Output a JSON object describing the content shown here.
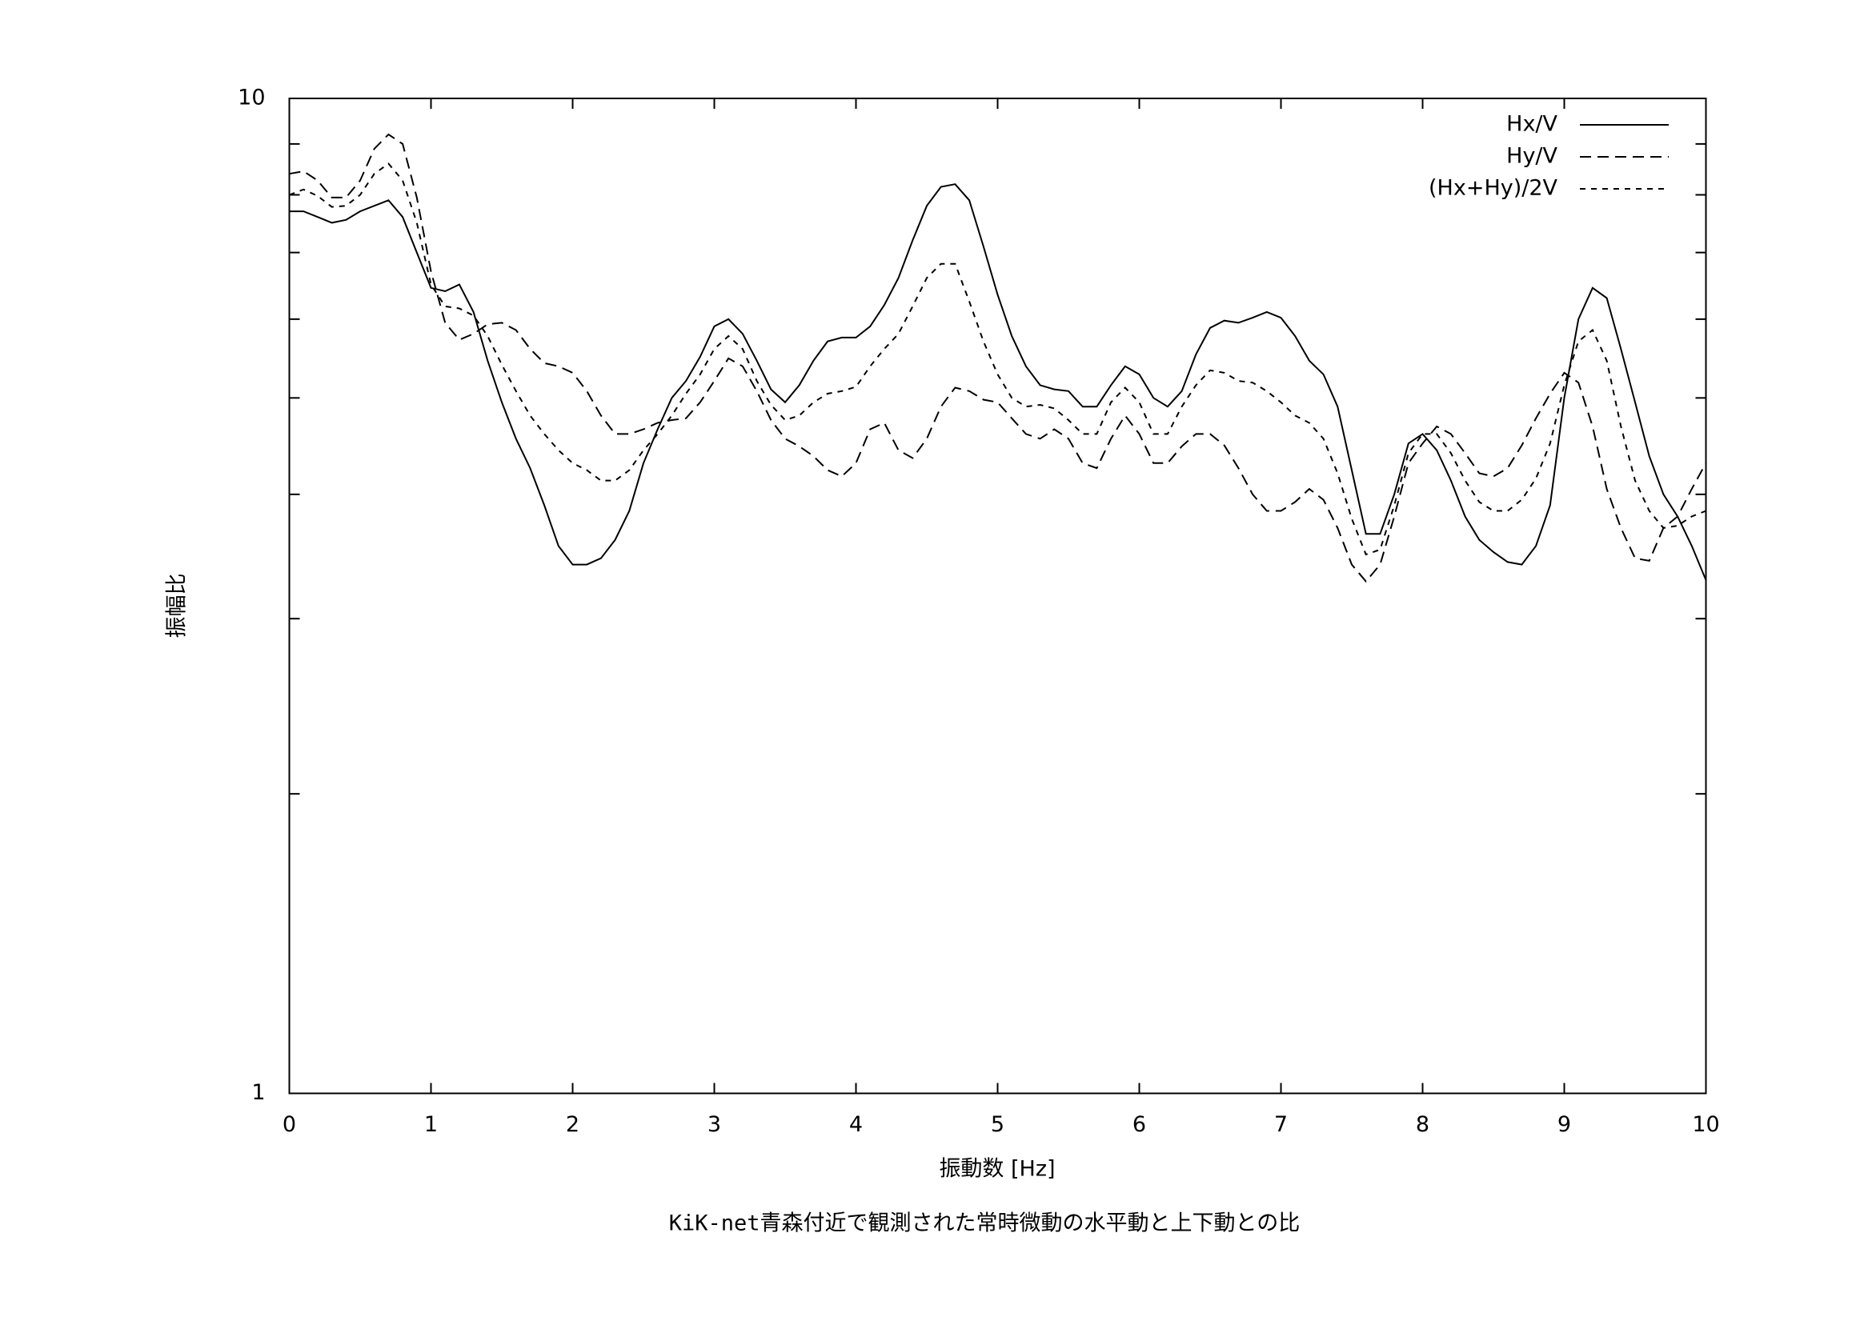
{
  "chart_data": {
    "type": "line",
    "title": "KiK-net青森付近で観測された常時微動の水平動と上下動との比",
    "xlabel": "振動数 [Hz]",
    "ylabel": "振幅比",
    "ylog": true,
    "xlim": [
      0,
      10
    ],
    "ylim": [
      1,
      10
    ],
    "xticks": [
      0,
      1,
      2,
      3,
      4,
      5,
      6,
      7,
      8,
      9,
      10
    ],
    "yticks": [
      1,
      10
    ],
    "yminorticks": [
      2,
      3,
      4,
      5,
      6,
      7,
      8,
      9
    ],
    "legend": "upper right",
    "x": [
      0,
      0.1,
      0.2,
      0.3,
      0.4,
      0.5,
      0.6,
      0.7,
      0.8,
      0.9,
      1,
      1.1,
      1.2,
      1.3,
      1.4,
      1.5,
      1.6,
      1.7,
      1.8,
      1.9,
      2,
      2.1,
      2.2,
      2.3,
      2.4,
      2.5,
      2.6,
      2.7,
      2.8,
      2.9,
      3,
      3.1,
      3.2,
      3.3,
      3.4,
      3.5,
      3.6,
      3.7,
      3.8,
      3.9,
      4,
      4.1,
      4.2,
      4.3,
      4.4,
      4.5,
      4.6,
      4.7,
      4.8,
      4.9,
      5,
      5.1,
      5.2,
      5.3,
      5.4,
      5.5,
      5.6,
      5.7,
      5.8,
      5.9,
      6,
      6.1,
      6.2,
      6.3,
      6.4,
      6.5,
      6.6,
      6.7,
      6.8,
      6.9,
      7,
      7.1,
      7.2,
      7.3,
      7.4,
      7.5,
      7.6,
      7.7,
      7.8,
      7.9,
      8,
      8.1,
      8.2,
      8.3,
      8.4,
      8.5,
      8.6,
      8.7,
      8.8,
      8.9,
      9,
      9.1,
      9.2,
      9.3,
      9.4,
      9.5,
      9.6,
      9.7,
      9.8,
      9.9,
      10
    ],
    "series": [
      {
        "name": "Hx/V",
        "color": "#000000",
        "dash": "solid",
        "values": [
          7.7,
          7.7,
          7.6,
          7.5,
          7.55,
          7.7,
          7.8,
          7.9,
          7.6,
          7.0,
          6.45,
          6.4,
          6.5,
          6.1,
          5.45,
          4.95,
          4.55,
          4.25,
          3.9,
          3.55,
          3.4,
          3.4,
          3.45,
          3.6,
          3.85,
          4.3,
          4.65,
          5.0,
          5.2,
          5.5,
          5.9,
          6.0,
          5.8,
          5.45,
          5.1,
          4.95,
          5.15,
          5.45,
          5.7,
          5.75,
          5.75,
          5.9,
          6.2,
          6.6,
          7.2,
          7.8,
          8.15,
          8.2,
          7.9,
          7.1,
          6.35,
          5.77,
          5.38,
          5.15,
          5.1,
          5.08,
          4.9,
          4.9,
          5.15,
          5.38,
          5.28,
          5.0,
          4.9,
          5.08,
          5.53,
          5.88,
          5.98,
          5.95,
          6.02,
          6.1,
          6.02,
          5.77,
          5.45,
          5.28,
          4.9,
          4.23,
          3.65,
          3.65,
          4.0,
          4.5,
          4.6,
          4.43,
          4.13,
          3.8,
          3.6,
          3.5,
          3.42,
          3.4,
          3.55,
          3.9,
          5.0,
          6.0,
          6.45,
          6.3,
          5.6,
          4.95,
          4.37,
          4.0,
          3.8,
          3.55,
          3.28
        ]
      },
      {
        "name": "Hy/V",
        "color": "#000000",
        "dash": "dashed",
        "values": [
          8.4,
          8.45,
          8.27,
          7.95,
          7.95,
          8.27,
          8.9,
          9.2,
          9.0,
          7.95,
          6.7,
          5.95,
          5.72,
          5.8,
          5.93,
          5.95,
          5.85,
          5.6,
          5.42,
          5.38,
          5.3,
          5.08,
          4.8,
          4.6,
          4.6,
          4.65,
          4.72,
          4.75,
          4.77,
          4.95,
          5.2,
          5.48,
          5.38,
          5.08,
          4.75,
          4.55,
          4.47,
          4.37,
          4.23,
          4.17,
          4.3,
          4.65,
          4.72,
          4.43,
          4.35,
          4.55,
          4.9,
          5.12,
          5.08,
          4.98,
          4.95,
          4.77,
          4.6,
          4.55,
          4.65,
          4.55,
          4.3,
          4.25,
          4.55,
          4.8,
          4.6,
          4.3,
          4.3,
          4.47,
          4.6,
          4.6,
          4.48,
          4.25,
          4.0,
          3.85,
          3.85,
          3.93,
          4.05,
          3.95,
          3.7,
          3.4,
          3.27,
          3.4,
          3.8,
          4.3,
          4.5,
          4.68,
          4.6,
          4.4,
          4.2,
          4.17,
          4.25,
          4.48,
          4.77,
          5.05,
          5.3,
          5.18,
          4.68,
          4.05,
          3.7,
          3.45,
          3.43,
          3.7,
          3.8,
          4.05,
          4.3
        ]
      },
      {
        "name": "(Hx+Hy)/2V",
        "color": "#000000",
        "dash": "dotted",
        "values": [
          8.0,
          8.1,
          7.98,
          7.78,
          7.8,
          8.0,
          8.4,
          8.6,
          8.27,
          7.5,
          6.5,
          6.18,
          6.15,
          6.05,
          5.77,
          5.4,
          5.08,
          4.8,
          4.6,
          4.43,
          4.3,
          4.23,
          4.13,
          4.13,
          4.23,
          4.43,
          4.6,
          4.8,
          5.05,
          5.28,
          5.6,
          5.77,
          5.6,
          5.2,
          4.92,
          4.75,
          4.8,
          4.95,
          5.05,
          5.08,
          5.13,
          5.38,
          5.6,
          5.8,
          6.18,
          6.6,
          6.82,
          6.82,
          6.25,
          5.7,
          5.28,
          5.0,
          4.9,
          4.92,
          4.88,
          4.75,
          4.6,
          4.6,
          4.95,
          5.12,
          4.95,
          4.6,
          4.6,
          4.9,
          5.15,
          5.33,
          5.3,
          5.2,
          5.18,
          5.08,
          4.95,
          4.8,
          4.72,
          4.55,
          4.2,
          3.78,
          3.48,
          3.52,
          3.9,
          4.4,
          4.6,
          4.6,
          4.4,
          4.13,
          3.93,
          3.85,
          3.85,
          3.95,
          4.15,
          4.5,
          5.15,
          5.7,
          5.85,
          5.45,
          4.68,
          4.13,
          3.85,
          3.7,
          3.72,
          3.8,
          3.85
        ]
      }
    ]
  }
}
